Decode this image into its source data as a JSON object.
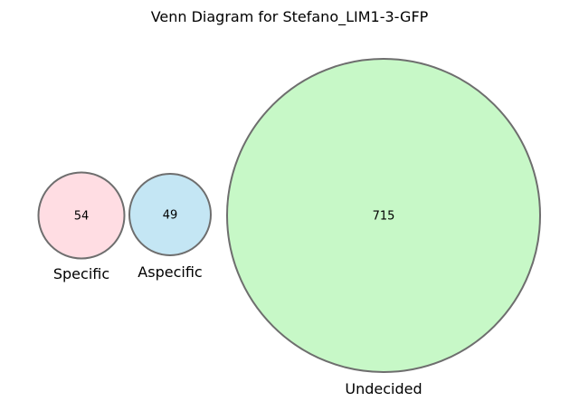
{
  "title": "Venn Diagram for Stefano_LIM1-3-GFP",
  "sets": [
    {
      "name": "Specific",
      "count": "54",
      "fill": "#ffdde3"
    },
    {
      "name": "Aspecific",
      "count": "49",
      "fill": "#c4e6f4"
    },
    {
      "name": "Undecided",
      "count": "715",
      "fill": "#c7f8c7"
    }
  ],
  "outline_color": "#6e6e6e"
}
